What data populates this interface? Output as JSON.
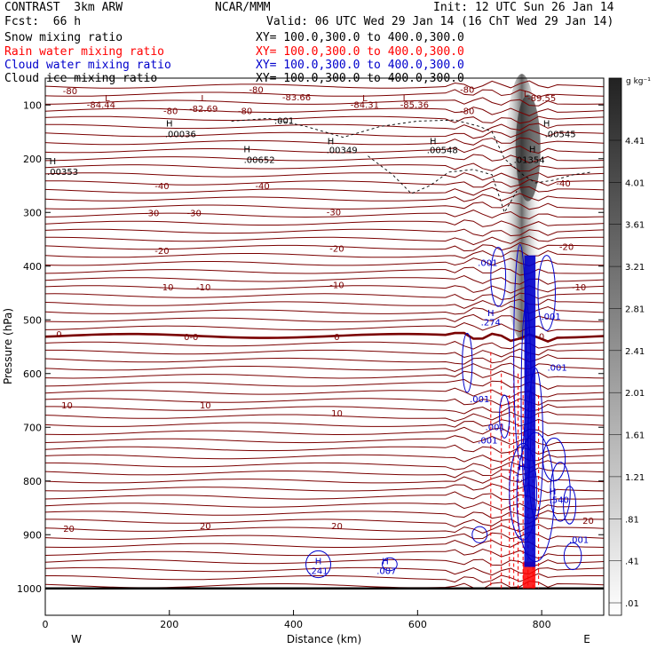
{
  "header": {
    "model": "CONTRAST  3km ARW",
    "org": "NCAR/MMM",
    "init": "Init: 12 UTC Sun 26 Jan 14",
    "fcst": "Fcst:  66 h",
    "valid": "Valid: 06 UTC Wed 29 Jan 14 (16 ChT Wed 29 Jan 14)"
  },
  "fields": [
    {
      "name": "Snow mixing ratio",
      "xy": "XY= 100.0,300.0 to 400.0,300.0",
      "color": "#000000"
    },
    {
      "name": "Rain water mixing ratio",
      "xy": "XY= 100.0,300.0 to 400.0,300.0",
      "color": "#ff0000"
    },
    {
      "name": "Cloud water mixing ratio",
      "xy": "XY= 100.0,300.0 to 400.0,300.0",
      "color": "#0000cc"
    },
    {
      "name": "Cloud ice mixing ratio",
      "xy": "XY= 100.0,300.0 to 400.0,300.0",
      "color": "#000000"
    }
  ],
  "colorbar": {
    "unit": "g kg⁻¹",
    "labels": [
      "4.41",
      "4.01",
      "3.61",
      "3.21",
      "2.81",
      "2.41",
      "2.01",
      "1.61",
      "1.21",
      ".81",
      ".41",
      ".01"
    ]
  },
  "chart_data": {
    "type": "cross-section contour",
    "xlabel": "Distance (km)",
    "ylabel": "Pressure (hPa)",
    "xlim": [
      0,
      900
    ],
    "ylim": [
      1050,
      50
    ],
    "x_ticks": [
      0,
      200,
      400,
      600,
      800
    ],
    "y_ticks": [
      100,
      200,
      300,
      400,
      500,
      600,
      700,
      800,
      900,
      1000
    ],
    "x_end_labels": {
      "left": "W",
      "right": "E"
    },
    "temperature_isotherm_labels": [
      {
        "label": "-80",
        "x": 40,
        "p": 75
      },
      {
        "label": "-80",
        "x": 340,
        "p": 72
      },
      {
        "label": "-80",
        "x": 202,
        "p": 112
      },
      {
        "label": "-80",
        "x": 322,
        "p": 112
      },
      {
        "label": "-80",
        "x": 680,
        "p": 72
      },
      {
        "label": "-80",
        "x": 680,
        "p": 112
      },
      {
        "label": "-40",
        "x": 188,
        "p": 252
      },
      {
        "label": "-40",
        "x": 350,
        "p": 252
      },
      {
        "label": "-40",
        "x": 835,
        "p": 247
      },
      {
        "label": "-30",
        "x": 172,
        "p": 302
      },
      {
        "label": "-30",
        "x": 240,
        "p": 302
      },
      {
        "label": "-30",
        "x": 465,
        "p": 300
      },
      {
        "label": "-20",
        "x": 188,
        "p": 372
      },
      {
        "label": "-20",
        "x": 470,
        "p": 368
      },
      {
        "label": "-20",
        "x": 840,
        "p": 365
      },
      {
        "label": "-10",
        "x": 195,
        "p": 440
      },
      {
        "label": "-10",
        "x": 255,
        "p": 440
      },
      {
        "label": "-10",
        "x": 470,
        "p": 436
      },
      {
        "label": "-10",
        "x": 860,
        "p": 440
      },
      {
        "label": "0",
        "x": 22,
        "p": 528
      },
      {
        "label": "0-0",
        "x": 235,
        "p": 533
      },
      {
        "label": "0",
        "x": 470,
        "p": 533
      },
      {
        "label": "0",
        "x": 800,
        "p": 532
      },
      {
        "label": "10",
        "x": 35,
        "p": 660
      },
      {
        "label": "10",
        "x": 258,
        "p": 660
      },
      {
        "label": "10",
        "x": 470,
        "p": 675
      },
      {
        "label": "20",
        "x": 38,
        "p": 890
      },
      {
        "label": "20",
        "x": 258,
        "p": 885
      },
      {
        "label": "20",
        "x": 470,
        "p": 885
      },
      {
        "label": "20",
        "x": 875,
        "p": 875
      }
    ],
    "extrema_labels": [
      {
        "label": "L",
        "x": 100,
        "p": 88
      },
      {
        "label": "-84.44",
        "x": 90,
        "p": 100
      },
      {
        "label": "L",
        "x": 255,
        "p": 88
      },
      {
        "label": "-82.69",
        "x": 255,
        "p": 108
      },
      {
        "label": "-83.66",
        "x": 405,
        "p": 86
      },
      {
        "label": "L",
        "x": 515,
        "p": 88
      },
      {
        "label": "-84.31",
        "x": 515,
        "p": 100
      },
      {
        "label": "L",
        "x": 580,
        "p": 88
      },
      {
        "label": "-85.36",
        "x": 595,
        "p": 100
      },
      {
        "label": "L",
        "x": 775,
        "p": 80
      },
      {
        "label": "-89.55",
        "x": 800,
        "p": 88
      },
      {
        "label": "H",
        "x": 200,
        "p": 135
      },
      {
        "label": ".00036",
        "x": 218,
        "p": 155
      },
      {
        "label": ".001",
        "x": 385,
        "p": 130
      },
      {
        "label": "H",
        "x": 325,
        "p": 183
      },
      {
        "label": ".00652",
        "x": 345,
        "p": 203
      },
      {
        "label": "H",
        "x": 460,
        "p": 168
      },
      {
        "label": ".00349",
        "x": 478,
        "p": 185
      },
      {
        "label": "H",
        "x": 625,
        "p": 168
      },
      {
        "label": ".00548",
        "x": 640,
        "p": 185
      },
      {
        "label": "H",
        "x": 808,
        "p": 135
      },
      {
        "label": ".00545",
        "x": 830,
        "p": 155
      },
      {
        "label": "H",
        "x": 785,
        "p": 183
      },
      {
        "label": ".01354",
        "x": 780,
        "p": 203
      },
      {
        "label": "H",
        "x": 12,
        "p": 205
      },
      {
        "label": ".00353",
        "x": 28,
        "p": 225
      },
      {
        "label": ".001",
        "x": 713,
        "p": 395
      },
      {
        "label": "H",
        "x": 718,
        "p": 488
      },
      {
        "label": ".274",
        "x": 718,
        "p": 505
      },
      {
        "label": ".001",
        "x": 815,
        "p": 495
      },
      {
        "label": ".001",
        "x": 825,
        "p": 590
      },
      {
        "label": ".001",
        "x": 700,
        "p": 648
      },
      {
        "label": ".001",
        "x": 725,
        "p": 700
      },
      {
        "label": ".001",
        "x": 713,
        "p": 725
      },
      {
        "label": "H",
        "x": 768,
        "p": 775
      },
      {
        "label": "1.7",
        "x": 768,
        "p": 795
      },
      {
        "label": "H",
        "x": 818,
        "p": 820
      },
      {
        "label": ".540",
        "x": 828,
        "p": 836
      },
      {
        "label": ".001",
        "x": 860,
        "p": 910
      },
      {
        "label": "H",
        "x": 440,
        "p": 950
      },
      {
        "label": ".241",
        "x": 440,
        "p": 968
      },
      {
        "label": "H",
        "x": 548,
        "p": 950
      },
      {
        "label": ".007",
        "x": 550,
        "p": 968
      }
    ]
  }
}
